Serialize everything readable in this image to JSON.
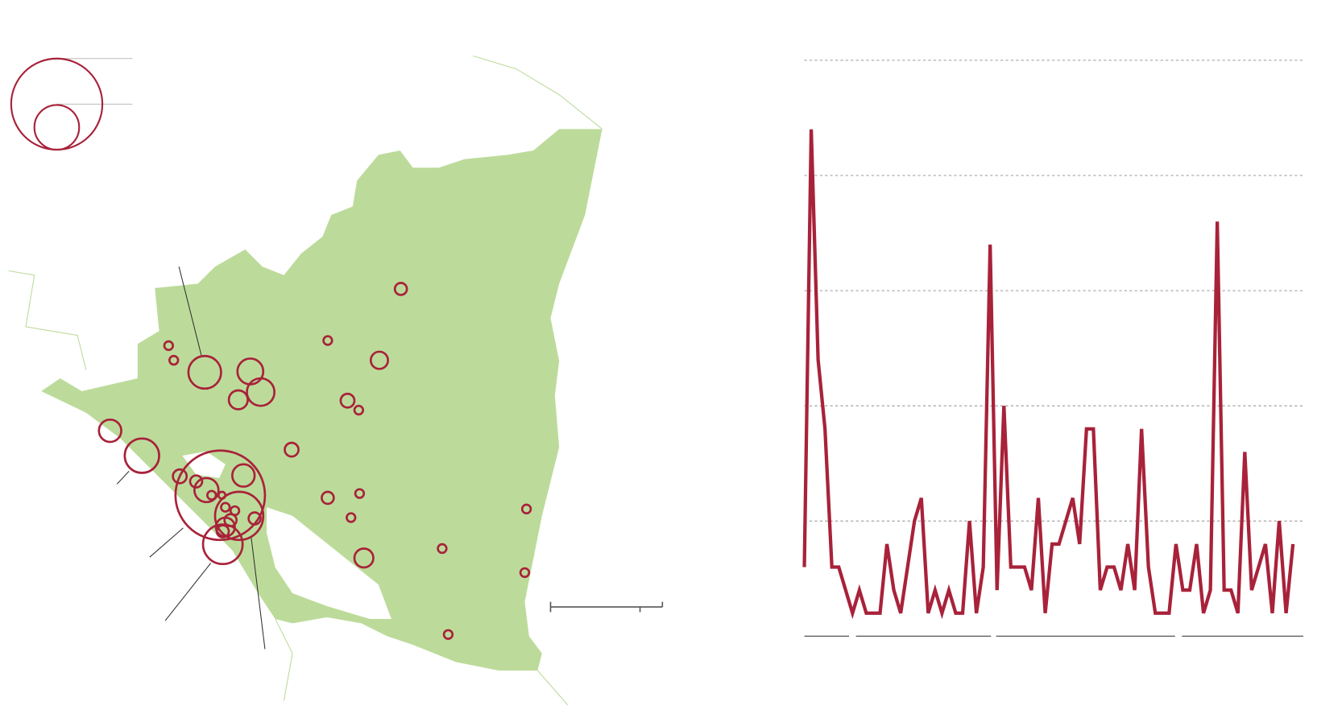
{
  "chart_data": [
    {
      "type": "bubble-map",
      "color": "#a8223a",
      "land_color": "#bcdb9a",
      "values": [
        7,
        5,
        10,
        5,
        5,
        19,
        15,
        16,
        11,
        8,
        5,
        13,
        20,
        8,
        8,
        7,
        13,
        14,
        52,
        5,
        4,
        28,
        5,
        5,
        7,
        11,
        7,
        7,
        23,
        7,
        5,
        5,
        11,
        5,
        5,
        5,
        5
      ]
    },
    {
      "type": "line",
      "color": "#a8223a",
      "categories": [
        null,
        null,
        null,
        null,
        null,
        null,
        null,
        null,
        null,
        null,
        null,
        null,
        null,
        null,
        null,
        null,
        null,
        null,
        null,
        null,
        null,
        null,
        null,
        null,
        null,
        null,
        null,
        null,
        null,
        null,
        null,
        null,
        null,
        null,
        null,
        null,
        null,
        null,
        null,
        null,
        null,
        null,
        null,
        null,
        null,
        null,
        null,
        null,
        null,
        null,
        null,
        null,
        null,
        null,
        null,
        null,
        null,
        null,
        null,
        null,
        null,
        null,
        null,
        null,
        null,
        null,
        null,
        null,
        null,
        null,
        null,
        null
      ],
      "values": [
        0.6,
        4.4,
        2.4,
        1.8,
        0.6,
        0.6,
        0.4,
        0.2,
        0.4,
        0.2,
        0.2,
        0.2,
        0.8,
        0.4,
        0.2,
        0.6,
        1.0,
        1.2,
        0.2,
        0.4,
        0.2,
        0.4,
        0.2,
        0.2,
        1.0,
        0.2,
        0.6,
        3.4,
        0.4,
        2.0,
        0.6,
        0.6,
        0.6,
        0.4,
        1.2,
        0.2,
        0.8,
        0.8,
        1.0,
        1.2,
        0.8,
        1.8,
        1.8,
        0.4,
        0.6,
        0.6,
        0.4,
        0.8,
        0.4,
        1.8,
        0.6,
        0.2,
        0.2,
        0.2,
        0.8,
        0.4,
        0.4,
        0.8,
        0.2,
        0.4,
        3.6,
        0.4,
        0.4,
        0.2,
        1.6,
        0.4,
        0.6,
        0.8,
        0.2,
        1.0,
        0.2,
        0.8
      ],
      "ylim": [
        0,
        5
      ],
      "yticks": [
        1,
        2,
        3,
        4,
        5
      ],
      "grid": true
    }
  ]
}
